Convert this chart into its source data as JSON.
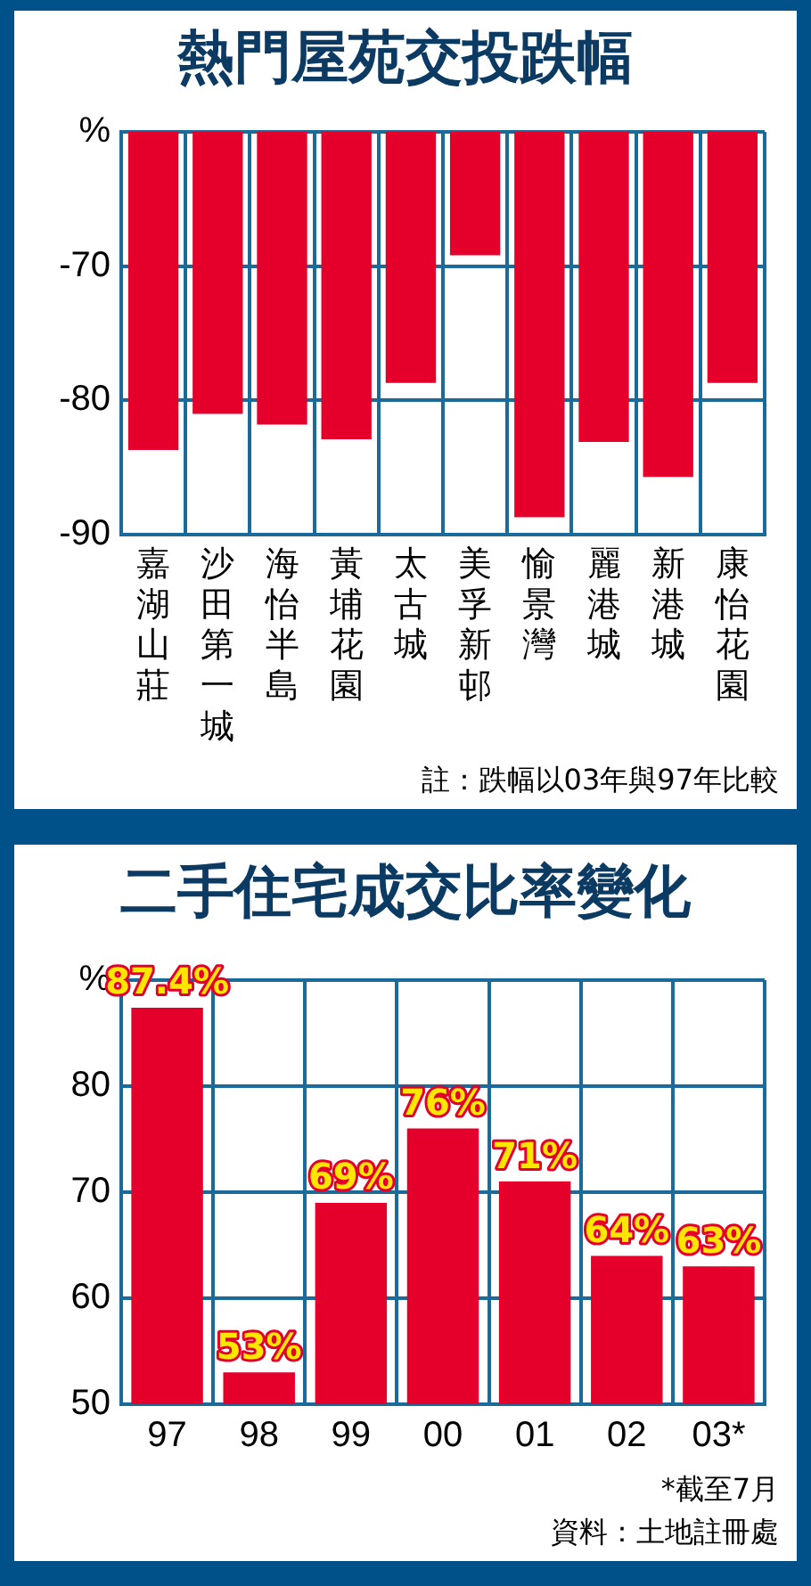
{
  "chart_data": [
    {
      "type": "bar",
      "title": "熱門屋苑交投跌幅",
      "categories": [
        "嘉湖山莊",
        "沙田第一城",
        "海怡半島",
        "黃埔花園",
        "太古城",
        "美孚新邨",
        "愉景灣",
        "麗港城",
        "新港城",
        "康怡花園"
      ],
      "values": [
        -83.7,
        -81.0,
        -81.8,
        -82.9,
        -78.7,
        -69.2,
        -88.7,
        -83.1,
        -85.7,
        -78.7
      ],
      "color": "#e4002b",
      "ylim": [
        -90,
        -60
      ],
      "yticks": [
        -90,
        -80,
        -70,
        {
          "value": -60,
          "label": "%"
        }
      ],
      "grid": true,
      "annotations": [
        "註：跌幅以03年與97年比較"
      ]
    },
    {
      "type": "bar",
      "title": "二手住宅成交比率變化",
      "categories": [
        "97",
        "98",
        "99",
        "00",
        "01",
        "02",
        "03*"
      ],
      "values": [
        87.4,
        53,
        69,
        76,
        71,
        64,
        63
      ],
      "value_labels": [
        "87.4%",
        "53%",
        "69%",
        "76%",
        "71%",
        "64%",
        "63%"
      ],
      "color": "#e4002b",
      "ylim": [
        50,
        90
      ],
      "yticks": [
        50,
        60,
        70,
        80,
        {
          "value": 90,
          "label": "%"
        }
      ],
      "grid": true,
      "annotations": [
        "*截至7月",
        "資料：土地註冊處"
      ]
    }
  ]
}
